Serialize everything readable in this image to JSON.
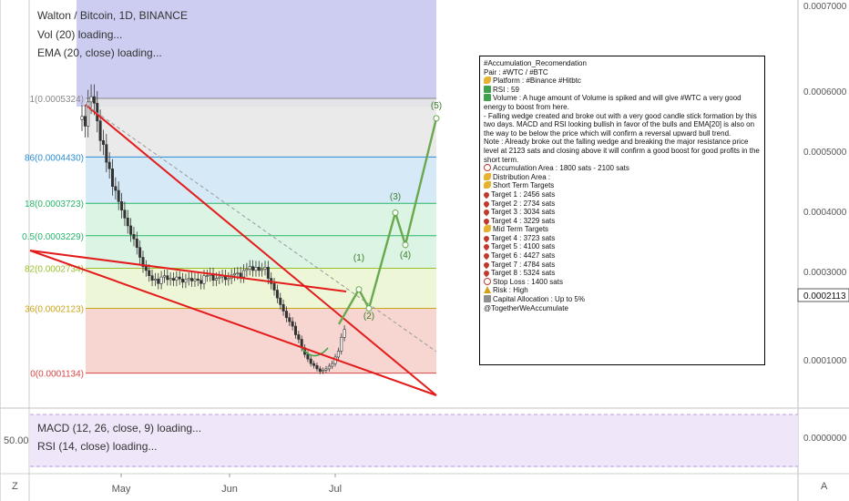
{
  "header": {
    "title": "Walton / Bitcoin, 1D, BINANCE",
    "vol_label": "Vol (20) loading...",
    "ema_label": "EMA (20, close) loading..."
  },
  "indicators": {
    "macd_label": "MACD (12, 26, close, 9) loading...",
    "rsi_label": "RSI (14, close) loading...",
    "left_value": "50.00"
  },
  "price_axis": {
    "ticks": [
      "0.0007000",
      "0.0006000",
      "0.0005000",
      "0.0004000",
      "0.0003000",
      "0.0001000"
    ],
    "current_price": "0.0002113",
    "indicator_tick": "0.0000000"
  },
  "time_axis": {
    "labels": [
      "May",
      "Jun",
      "Jul"
    ]
  },
  "controls": {
    "zoom_left": "Z",
    "auto_right": "A"
  },
  "fib_labels": [
    {
      "text": "1(0.0005324)",
      "price": 0.0005324
    },
    {
      "text": "86(0.0004430)",
      "price": 0.000443
    },
    {
      "text": "18(0.0003723)",
      "price": 0.0003723
    },
    {
      "text": "0.5(0.0003229)",
      "price": 0.0003229
    },
    {
      "text": "82(0.0002734)",
      "price": 0.0002734
    },
    {
      "text": "36(0.0002123)",
      "price": 0.0002123
    },
    {
      "text": "0(0.0001134)",
      "price": 0.0001134
    }
  ],
  "wave_labels": [
    "(1)",
    "(2)",
    "(3)",
    "(4)",
    "(5)"
  ],
  "annotation": {
    "lines": [
      {
        "icon": "",
        "text": "#Accumulation_Recomendation"
      },
      {
        "icon": "",
        "text": "Pair : #WTC / #BTC"
      },
      {
        "icon": "hand",
        "text": "Platform : #Binance #Hitbtc"
      },
      {
        "icon": "chart",
        "text": "RSI : 59"
      },
      {
        "icon": "vol",
        "text": "Volume : A huge amount of Volume is spiked and will give #WTC a very good energy to boost from here.",
        "wrap": true
      },
      {
        "icon": "",
        "text": "- Falling wedge created and broke out with a very good candle stick formation by this two days. MACD and RSI looking bullish in favor of the bulls and EMA[20] is also on the way to be below the price which will confirm a reversal upward bull trend.",
        "wrap": true
      },
      {
        "icon": "",
        "text": "Note : Already broke out the falling wedge and breaking the major resistance price level at 2123 sats and closing above it will confirm a good boost for good profits in the short term.",
        "wrap": true
      },
      {
        "icon": "circle",
        "text": "Accumulation Area : 1800 sats - 2100 sats"
      },
      {
        "icon": "hand",
        "text": "Distribution Area :"
      },
      {
        "icon": "hand",
        "text": "Short Term Targets"
      },
      {
        "icon": "pin",
        "text": "Target 1 : 2456 sats"
      },
      {
        "icon": "pin",
        "text": "Target 2 : 2734 sats"
      },
      {
        "icon": "pin",
        "text": "Target 3 : 3034 sats"
      },
      {
        "icon": "pin",
        "text": "Target 4 : 3229 sats"
      },
      {
        "icon": "hand",
        "text": "Mid Term Targets"
      },
      {
        "icon": "pin",
        "text": "Target 4 : 3723 sats"
      },
      {
        "icon": "pin",
        "text": "Target 5 : 4100 sats"
      },
      {
        "icon": "pin",
        "text": "Target 6 : 4427 sats"
      },
      {
        "icon": "pin",
        "text": "Target 7 : 4784 sats"
      },
      {
        "icon": "pin",
        "text": "Target 8 : 5324 sats"
      },
      {
        "icon": "stop",
        "text": "Stop Loss : 1400 sats"
      },
      {
        "icon": "warn",
        "text": "Risk : High"
      },
      {
        "icon": "cap",
        "text": "Capital Allocation : Up to 5%"
      },
      {
        "icon": "",
        "text": "@TogetherWeAccumulate"
      }
    ]
  },
  "colors": {
    "candle_up": "#333333",
    "candle_down": "#333333",
    "wedge_line": "#e31b1b",
    "projection": "#6aa84f",
    "highlight_band": "#c8c8f0",
    "indicator_pane": "#f0e6fa"
  },
  "chart_data": {
    "type": "candlestick",
    "symbol": "Walton / Bitcoin",
    "interval": "1D",
    "exchange": "BINANCE",
    "y_axis_ticks": [
      0.0001,
      0.0003,
      0.0004,
      0.0005,
      0.0006,
      0.0007
    ],
    "current_price": 0.0002113,
    "x_axis_labels": [
      "May",
      "Jun",
      "Jul"
    ],
    "fibonacci_levels": [
      0.0005324,
      0.000443,
      0.0003723,
      0.0003229,
      0.0002734,
      0.0002123,
      0.0001134
    ],
    "closes": [
      0.000505,
      0.00049,
      0.000527,
      0.000535,
      0.000525,
      0.000498,
      0.000468,
      0.000462,
      0.000435,
      0.000425,
      0.000398,
      0.000392,
      0.000375,
      0.000362,
      0.00035,
      0.000338,
      0.000325,
      0.000318,
      0.000305,
      0.00029,
      0.000276,
      0.00027,
      0.000262,
      0.000255,
      0.000257,
      0.00025,
      0.00026,
      0.000262,
      0.000256,
      0.000258,
      0.000255,
      0.00026,
      0.000257,
      0.000252,
      0.000256,
      0.000258,
      0.000254,
      0.000257,
      0.000255,
      0.00025,
      0.000262,
      0.000262,
      0.000265,
      0.000255,
      0.000258,
      0.00026,
      0.000262,
      0.000256,
      0.000258,
      0.000263,
      0.000265,
      0.000266,
      0.00026,
      0.00027,
      0.000272,
      0.000276,
      0.00027,
      0.000275,
      0.00027,
      0.000272,
      0.000275,
      0.000258,
      0.00025,
      0.00024,
      0.000228,
      0.000218,
      0.000208,
      0.000198,
      0.000192,
      0.000185,
      0.000172,
      0.000165,
      0.000152,
      0.000142,
      0.000135,
      0.000128,
      0.000125,
      0.00012,
      0.000116,
      0.000118,
      0.00012,
      0.000124,
      0.000128,
      0.000138,
      0.000147,
      0.000168,
      0.00018
    ],
    "projection_path": [
      0.000188,
      0.000241,
      0.000212,
      0.000358,
      0.000309,
      0.000502
    ],
    "wave_labels": [
      "(1)",
      "(2)",
      "(3)",
      "(4)",
      "(5)"
    ]
  }
}
